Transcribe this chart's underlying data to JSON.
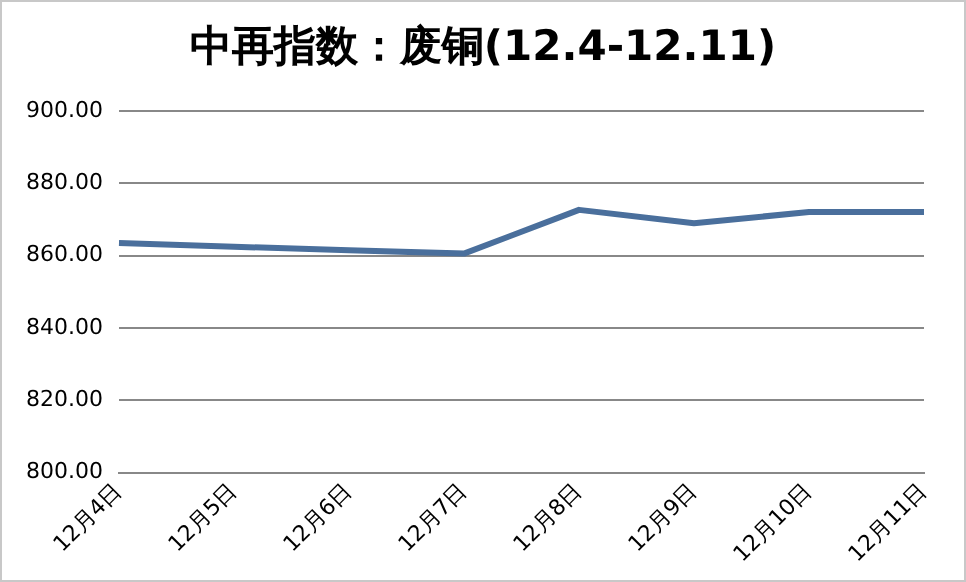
{
  "chart_data": {
    "type": "line",
    "title": "中再指数：废铜(12.4-12.11)",
    "categories": [
      "12月4日",
      "12月5日",
      "12月6日",
      "12月7日",
      "12月8日",
      "12月9日",
      "12月10日",
      "12月11日"
    ],
    "series": [
      {
        "color": "#4a6f9c",
        "values": [
          863.5,
          862.5,
          861.5,
          860.6,
          872.7,
          869.0,
          872.1,
          872.1
        ]
      }
    ],
    "ylim": [
      800,
      900
    ],
    "yticks": [
      {
        "value": 800,
        "label": "800.00"
      },
      {
        "value": 820,
        "label": "820.00"
      },
      {
        "value": 840,
        "label": "840.00"
      },
      {
        "value": 860,
        "label": "860.00"
      },
      {
        "value": 880,
        "label": "880.00"
      },
      {
        "value": 900,
        "label": "900.00"
      }
    ],
    "grid": "y",
    "legend": false,
    "marker": "none",
    "line_style": "solid"
  }
}
